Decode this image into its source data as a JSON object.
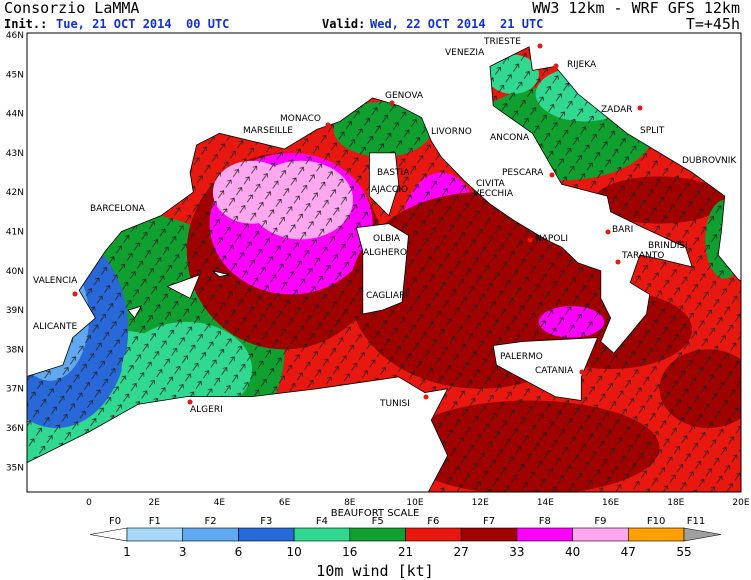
{
  "header": {
    "title": "Consorzio LaMMA",
    "model": "WW3 12km - WRF GFS 12km",
    "init_label": "Init.:",
    "init_time": "Tue, 21 OCT 2014  00 UTC",
    "valid_label": "Valid:",
    "valid_time": "Wed, 22 OCT 2014  21 UTC",
    "forecast_step": "T=+45h"
  },
  "map": {
    "lat_labels": [
      "46N",
      "45N",
      "44N",
      "43N",
      "42N",
      "41N",
      "40N",
      "39N",
      "38N",
      "37N",
      "36N",
      "35N"
    ],
    "lon_labels": [
      "0",
      "2E",
      "4E",
      "6E",
      "8E",
      "10E",
      "12E",
      "14E",
      "16E",
      "18E",
      "20E"
    ],
    "cities": [
      "TRIESTE",
      "VENEZIA",
      "RIJEKA",
      "GENOVA",
      "MONACO",
      "MARSEILLE",
      "LIVORNO",
      "ANCONA",
      "ZADAR",
      "SPLIT",
      "DUBROVNIK",
      "PESCARA",
      "BASTIA",
      "AJACCIO",
      "CIVITA",
      "VECCHIA",
      "BARCELONA",
      "NAPOLI",
      "BARI",
      "BRINDISI",
      "OLBIA",
      "ALGHERO",
      "TARANTO",
      "VALENCIA",
      "CAGLIARI",
      "ALICANTE",
      "PALERMO",
      "CATANIA",
      "ALGERI",
      "TUNISI"
    ]
  },
  "legend": {
    "title": "BEAUFORT SCALE",
    "classes": [
      {
        "label": "F0",
        "color": "#ffffff"
      },
      {
        "label": "F1",
        "color": "#a8d8f8"
      },
      {
        "label": "F2",
        "color": "#60a8f0"
      },
      {
        "label": "F3",
        "color": "#2868d8"
      },
      {
        "label": "F4",
        "color": "#30d890"
      },
      {
        "label": "F5",
        "color": "#10a030"
      },
      {
        "label": "F6",
        "color": "#e81810"
      },
      {
        "label": "F7",
        "color": "#a00000"
      },
      {
        "label": "F8",
        "color": "#ff00ff"
      },
      {
        "label": "F9",
        "color": "#ffa8f0"
      },
      {
        "label": "F10",
        "color": "#ffa000"
      },
      {
        "label": "F11",
        "color": "#a0a0a0"
      }
    ],
    "thresholds": [
      1,
      3,
      6,
      10,
      16,
      21,
      27,
      33,
      40,
      47,
      55
    ],
    "caption": "10m wind [kt]"
  }
}
